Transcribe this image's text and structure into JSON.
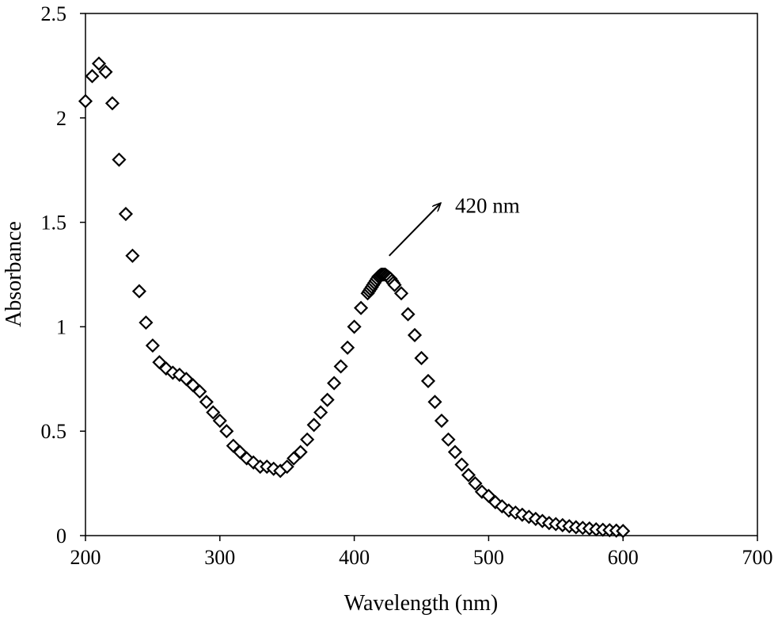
{
  "chart_data": {
    "type": "scatter",
    "title": "",
    "xlabel": "Wavelength (nm)",
    "ylabel": "Absorbance",
    "xlim": [
      200,
      700
    ],
    "ylim": [
      0,
      2.5
    ],
    "xticks": [
      "200",
      "300",
      "400",
      "500",
      "600",
      "700"
    ],
    "yticks": [
      "0",
      "0.5",
      "1",
      "1.5",
      "2",
      "2.5"
    ],
    "grid": false,
    "marker": "open-diamond",
    "color": "#000000",
    "annotation": {
      "text": "420 nm",
      "arrow_from": [
        426,
        1.34
      ],
      "arrow_to": [
        464,
        1.59
      ],
      "text_at": [
        475,
        1.58
      ]
    },
    "x": [
      200,
      205,
      210,
      215,
      220,
      225,
      230,
      235,
      240,
      245,
      250,
      255,
      260,
      265,
      270,
      275,
      280,
      285,
      290,
      295,
      300,
      305,
      310,
      315,
      320,
      325,
      330,
      335,
      340,
      345,
      350,
      355,
      360,
      365,
      370,
      375,
      380,
      385,
      390,
      395,
      400,
      405,
      410,
      411,
      412,
      413,
      414,
      415,
      416,
      417,
      418,
      419,
      420,
      421,
      422,
      423,
      424,
      425,
      426,
      427,
      428,
      429,
      430,
      435,
      440,
      445,
      450,
      455,
      460,
      465,
      470,
      475,
      480,
      485,
      490,
      495,
      500,
      505,
      510,
      515,
      520,
      525,
      530,
      535,
      540,
      545,
      550,
      555,
      560,
      565,
      570,
      575,
      580,
      585,
      590,
      595,
      600
    ],
    "y": [
      2.08,
      2.2,
      2.26,
      2.22,
      2.07,
      1.8,
      1.54,
      1.34,
      1.17,
      1.02,
      0.91,
      0.83,
      0.8,
      0.78,
      0.77,
      0.75,
      0.72,
      0.69,
      0.64,
      0.59,
      0.55,
      0.5,
      0.43,
      0.4,
      0.37,
      0.35,
      0.33,
      0.33,
      0.32,
      0.31,
      0.33,
      0.37,
      0.4,
      0.46,
      0.53,
      0.59,
      0.65,
      0.73,
      0.81,
      0.9,
      1.0,
      1.09,
      1.16,
      1.17,
      1.18,
      1.19,
      1.2,
      1.21,
      1.22,
      1.23,
      1.24,
      1.245,
      1.25,
      1.25,
      1.25,
      1.25,
      1.245,
      1.24,
      1.235,
      1.23,
      1.22,
      1.21,
      1.2,
      1.16,
      1.06,
      0.96,
      0.85,
      0.74,
      0.64,
      0.55,
      0.46,
      0.4,
      0.34,
      0.29,
      0.25,
      0.21,
      0.19,
      0.16,
      0.14,
      0.12,
      0.11,
      0.1,
      0.09,
      0.08,
      0.07,
      0.06,
      0.055,
      0.05,
      0.045,
      0.04,
      0.037,
      0.034,
      0.03,
      0.028,
      0.026,
      0.024,
      0.022
    ]
  }
}
